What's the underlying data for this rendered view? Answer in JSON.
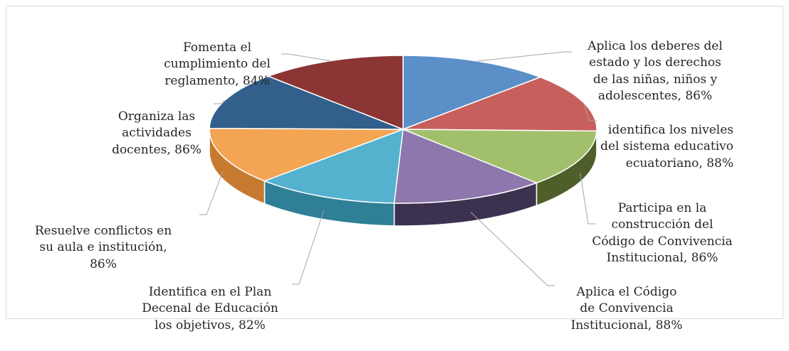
{
  "chart_data": {
    "type": "pie",
    "variant": "3d",
    "title": "",
    "slices": [
      {
        "label": "Aplica los deberes del estado y los derechos de las niñas, niños y adolescentes, 86%",
        "lines": [
          "Aplica los deberes del",
          "estado y los derechos",
          "de las niñas, niños y",
          "adolescentes, 86%"
        ],
        "value": 86,
        "color": "#5b8fc8",
        "side": "#3f6a9a"
      },
      {
        "label": "identifica los niveles del sistema educativo ecuatoriano, 88%",
        "lines": [
          "identifica los niveles",
          "del sistema educativo",
          "ecuatoriano, 88%"
        ],
        "value": 88,
        "color": "#c75f5c",
        "side": "#8e3f3d"
      },
      {
        "label": "Participa en la construcción del Código de Convivencia Institucional, 86%",
        "lines": [
          "Participa en la",
          "construcción del",
          "Código de Convivencia",
          "Institucional, 86%"
        ],
        "value": 86,
        "color": "#a2c06b",
        "side": "#4e5f2a"
      },
      {
        "label": "Aplica el Código de Convivencia Institucional, 88%",
        "lines": [
          "Aplica el  Código",
          "de Convivencia",
          "Institucional, 88%"
        ],
        "value": 88,
        "color": "#8d77ac",
        "side": "#3d3150"
      },
      {
        "label": "Identifica en el Plan Decenal de Educación los objetivos, 82%",
        "lines": [
          "Identifica en el Plan",
          "Decenal de Educación",
          "los objetivos, 82%"
        ],
        "value": 82,
        "color": "#55b2cf",
        "side": "#2f7f96"
      },
      {
        "label": "Resuelve conflictos en su aula e institución, 86%",
        "lines": [
          "Resuelve conflictos en",
          "su aula e institución,",
          "86%"
        ],
        "value": 86,
        "color": "#f3a553",
        "side": "#c57a2f"
      },
      {
        "label": "Organiza las actividades docentes, 86%",
        "lines": [
          "Organiza las",
          "actividades",
          "docentes, 86%"
        ],
        "value": 86,
        "color": "#325f8c",
        "side": "#21415f"
      },
      {
        "label": "Fomenta el cumplimiento del reglamento, 84%",
        "lines": [
          "Fomenta el",
          "cumplimiento del",
          "reglamento, 84%"
        ],
        "value": 84,
        "color": "#8b3535",
        "side": "#5e2222"
      }
    ]
  }
}
